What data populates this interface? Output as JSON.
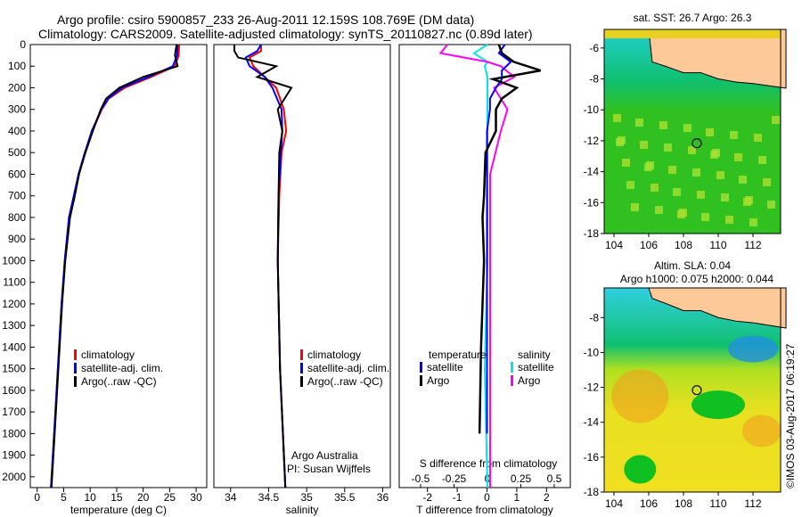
{
  "header": {
    "line1": "Argo profile: csiro 5900857_233 26-Aug-2011 12.159S 108.769E (DM data)",
    "line2": "Climatology: CARS2009. Satellite-adjusted climatology: synTS_20110827.nc (0.89d later)"
  },
  "credit": "©IMOS 03-Aug-2017 06:19:27",
  "colors": {
    "climatology": "#ff0000",
    "satellite": "#0000ff",
    "argo": "#000000",
    "sal_sat": "#00e5ee",
    "sal_argo": "#ff00ff",
    "land": "#fdc998"
  },
  "chart_data": [
    {
      "type": "line",
      "name": "temperature",
      "xlabel": "temperature (deg C)",
      "ylabel": "",
      "xlim": [
        -1.3,
        32
      ],
      "ylim": [
        2050,
        0
      ],
      "xticks": [
        0,
        5,
        10,
        15,
        20,
        25,
        30
      ],
      "yticks": [
        0,
        100,
        200,
        300,
        400,
        500,
        600,
        700,
        800,
        900,
        1000,
        1100,
        1200,
        1300,
        1400,
        1500,
        1600,
        1700,
        1800,
        1900,
        2000
      ],
      "legend": [
        "climatology",
        "satellite-adj. clim.",
        "Argo(..raw -QC)"
      ],
      "depth": [
        0,
        50,
        100,
        150,
        200,
        250,
        300,
        400,
        500,
        600,
        700,
        800,
        1000,
        1200,
        1500,
        1800,
        2050
      ],
      "series": [
        {
          "name": "climatology",
          "values": [
            26.8,
            26.7,
            26,
            21.5,
            16.5,
            13.5,
            12.2,
            10.4,
            9,
            7.8,
            7,
            6,
            5.2,
            4.6,
            3.9,
            3.2,
            2.6
          ]
        },
        {
          "name": "satellite-adj. clim.",
          "values": [
            26.5,
            26.4,
            25.6,
            21,
            16,
            13.4,
            12.1,
            10.3,
            9,
            7.8,
            6.9,
            6,
            5.2,
            4.6,
            3.9,
            3.2,
            2.6
          ]
        },
        {
          "name": "Argo(..raw -QC)",
          "values": [
            26.3,
            26,
            26.5,
            20,
            15.5,
            13,
            12,
            10.5,
            9.1,
            7.9,
            7.1,
            6.2,
            5.3,
            4.7,
            4,
            3.3,
            2.7
          ]
        }
      ]
    },
    {
      "type": "line",
      "name": "salinity",
      "xlabel": "salinity",
      "xlim": [
        33.78,
        36.1
      ],
      "ylim": [
        2050,
        0
      ],
      "xticks": [
        34,
        34.5,
        35,
        35.5,
        36
      ],
      "legend": [
        "climatology",
        "satellite-adj. clim.",
        "Argo(..raw -QC)"
      ],
      "annotation": [
        "Argo Australia",
        "PI: Susan Wijffels"
      ],
      "depth": [
        0,
        30,
        60,
        100,
        150,
        200,
        300,
        400,
        500,
        700,
        1000,
        1500,
        2050
      ],
      "series": [
        {
          "name": "climatology",
          "values": [
            34.4,
            34.4,
            34.25,
            34.3,
            34.45,
            34.6,
            34.7,
            34.73,
            34.67,
            34.64,
            34.62,
            34.65,
            34.72
          ]
        },
        {
          "name": "satellite-adj. clim.",
          "values": [
            34.4,
            34.35,
            34.2,
            34.25,
            34.45,
            34.55,
            34.67,
            34.68,
            34.66,
            34.63,
            34.62,
            34.65,
            34.72
          ]
        },
        {
          "name": "Argo(..raw -QC)",
          "values": [
            34.05,
            34.05,
            34.1,
            34.6,
            34.35,
            34.8,
            34.62,
            34.68,
            34.64,
            34.63,
            34.62,
            34.65,
            34.72
          ]
        }
      ]
    },
    {
      "type": "line",
      "name": "differences",
      "xlabel": "T difference from climatology",
      "x2label": "S difference from climatology",
      "xlim": [
        -2.95,
        2.8
      ],
      "ylim": [
        2050,
        0
      ],
      "xticks": [
        -2,
        -1,
        0,
        1,
        2
      ],
      "x2ticks": [
        -0.5,
        -0.25,
        0,
        0.25,
        0.5
      ],
      "legend_temperature": {
        "title": "temperature",
        "items": [
          "satellite",
          "Argo"
        ]
      },
      "legend_salinity": {
        "title": "salinity",
        "items": [
          "satellite",
          "Argo"
        ]
      },
      "t_depth": [
        0,
        40,
        80,
        120,
        160,
        200,
        250,
        300,
        400,
        500,
        700,
        800,
        1000,
        1400,
        1800
      ],
      "series_t": [
        {
          "name": "temperature satellite",
          "values": [
            0.6,
            0.4,
            0.8,
            0.5,
            0.5,
            0.3,
            0.1,
            0.1,
            0,
            0,
            0,
            0,
            0,
            0,
            0
          ]
        },
        {
          "name": "temperature Argo",
          "values": [
            0.4,
            0.5,
            0.9,
            1.8,
            0.2,
            1,
            0.5,
            0.3,
            0.3,
            -0.05,
            -0.1,
            -0.15,
            -0.1,
            -0.2,
            -0.25
          ]
        }
      ],
      "s_depth": [
        0,
        40,
        80,
        100,
        150,
        200,
        250,
        300,
        400,
        600,
        1000,
        1500,
        2050
      ],
      "series_s": [
        {
          "name": "salinity satellite",
          "values": [
            0,
            -0.1,
            0,
            -0.02,
            0,
            0,
            0,
            0,
            0,
            0,
            0,
            -0.02,
            0
          ]
        },
        {
          "name": "salinity Argo",
          "values": [
            -0.3,
            -0.35,
            0,
            0.1,
            0.2,
            0.05,
            0.1,
            0.15,
            0.1,
            0.02,
            0.02,
            0.02,
            0.02
          ]
        }
      ]
    }
  ],
  "maps": [
    {
      "title": "sat. SST: 26.7  Argo: 26.3",
      "xticks": [
        104,
        106,
        108,
        110,
        112
      ],
      "yticks": [
        -6,
        -8,
        -10,
        -12,
        -14,
        -16,
        -18
      ],
      "lat_max": -4.8,
      "argo": [
        108.769,
        -12.159
      ]
    },
    {
      "title": "Altim. SLA: 0.04",
      "subtitle": "Argo h1000: 0.075 h2000: 0.044",
      "xticks": [
        104,
        106,
        108,
        110,
        112
      ],
      "yticks": [
        -8,
        -10,
        -12,
        -14,
        -16,
        -18
      ],
      "lat_max": -6.3,
      "argo": [
        108.769,
        -12.159
      ]
    }
  ]
}
